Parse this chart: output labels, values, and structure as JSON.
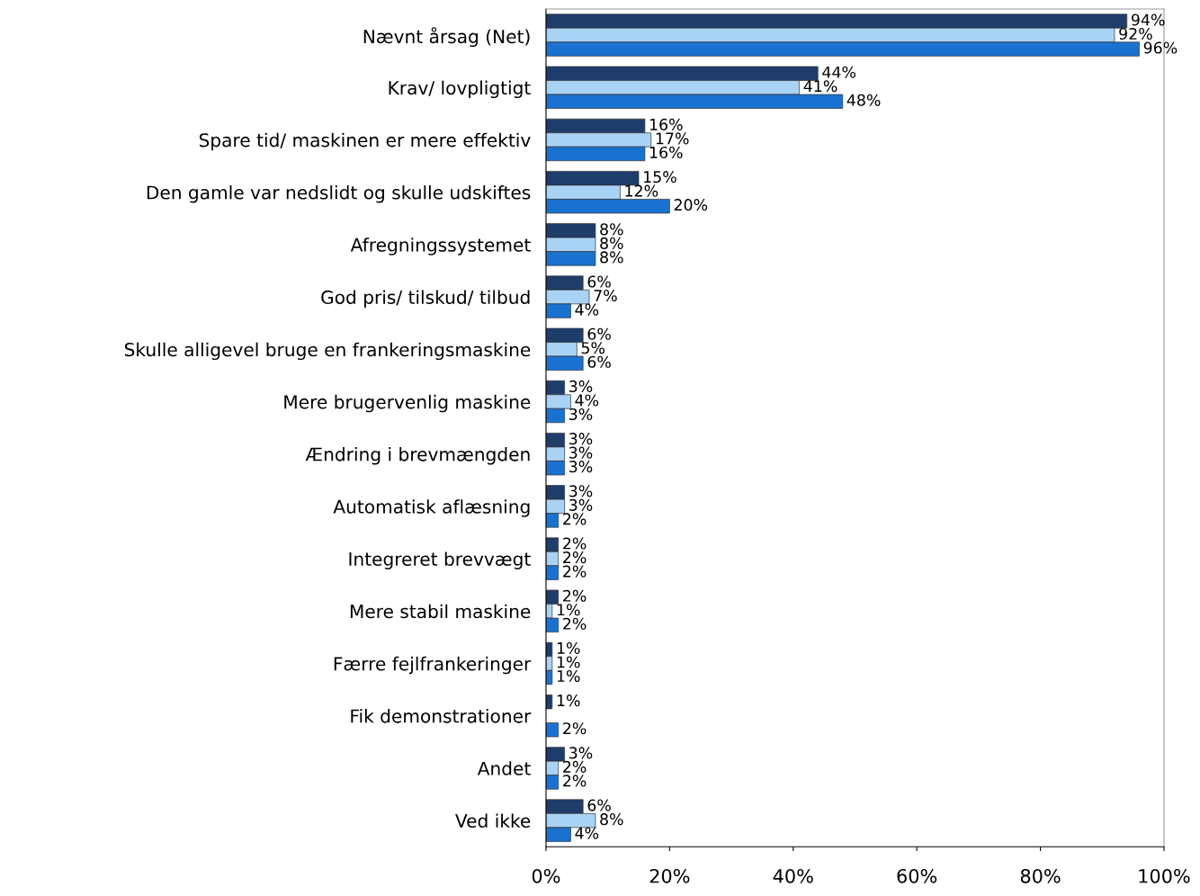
{
  "chart_data": {
    "type": "bar",
    "orientation": "horizontal",
    "categories": [
      "Nævnt årsag (Net)",
      "Krav/ lovpligtigt",
      "Spare tid/ maskinen er mere effektiv",
      "Den gamle var nedslidt og skulle udskiftes",
      "Afregningssystemet",
      "God pris/ tilskud/ tilbud",
      "Skulle alligevel bruge en frankeringsmaskine",
      "Mere brugervenlig maskine",
      "Ændring i brevmængden",
      "Automatisk aflæsning",
      "Integreret brevvægt",
      "Mere stabil maskine",
      "Færre fejlfrankeringer",
      "Fik demonstrationer",
      "Andet",
      "Ved ikke"
    ],
    "series": [
      {
        "color": "#1f3d6b",
        "values": [
          94,
          44,
          16,
          15,
          8,
          6,
          6,
          3,
          3,
          3,
          2,
          2,
          1,
          1,
          3,
          6
        ],
        "value_labels": [
          "94%",
          "44%",
          "16%",
          "15%",
          "8%",
          "6%",
          "6%",
          "3%",
          "3%",
          "3%",
          "2%",
          "2%",
          "1%",
          "1%",
          "3%",
          "6%"
        ]
      },
      {
        "color": "#a9d3f5",
        "values": [
          92,
          41,
          17,
          12,
          8,
          7,
          5,
          4,
          3,
          3,
          2,
          1,
          1,
          null,
          2,
          8
        ],
        "value_labels": [
          "92%",
          "41%",
          "17%",
          "12%",
          "8%",
          "7%",
          "5%",
          "4%",
          "3%",
          "3%",
          "2%",
          "1%",
          "1%",
          null,
          "2%",
          "8%"
        ]
      },
      {
        "color": "#1a72d0",
        "values": [
          96,
          48,
          16,
          20,
          8,
          4,
          6,
          3,
          3,
          2,
          2,
          2,
          1,
          2,
          2,
          4
        ],
        "value_labels": [
          "96%",
          "48%",
          "16%",
          "20%",
          "8%",
          "4%",
          "6%",
          "3%",
          "3%",
          "2%",
          "2%",
          "2%",
          "1%",
          "2%",
          "2%",
          "4%"
        ]
      }
    ],
    "xlim": [
      0,
      100
    ],
    "xticks": [
      {
        "value": 0,
        "label": "0%"
      },
      {
        "value": 20,
        "label": "20%"
      },
      {
        "value": 40,
        "label": "40%"
      },
      {
        "value": 60,
        "label": "60%"
      },
      {
        "value": 80,
        "label": "80%"
      },
      {
        "value": 100,
        "label": "100%"
      }
    ],
    "grid": false,
    "legend": false
  }
}
